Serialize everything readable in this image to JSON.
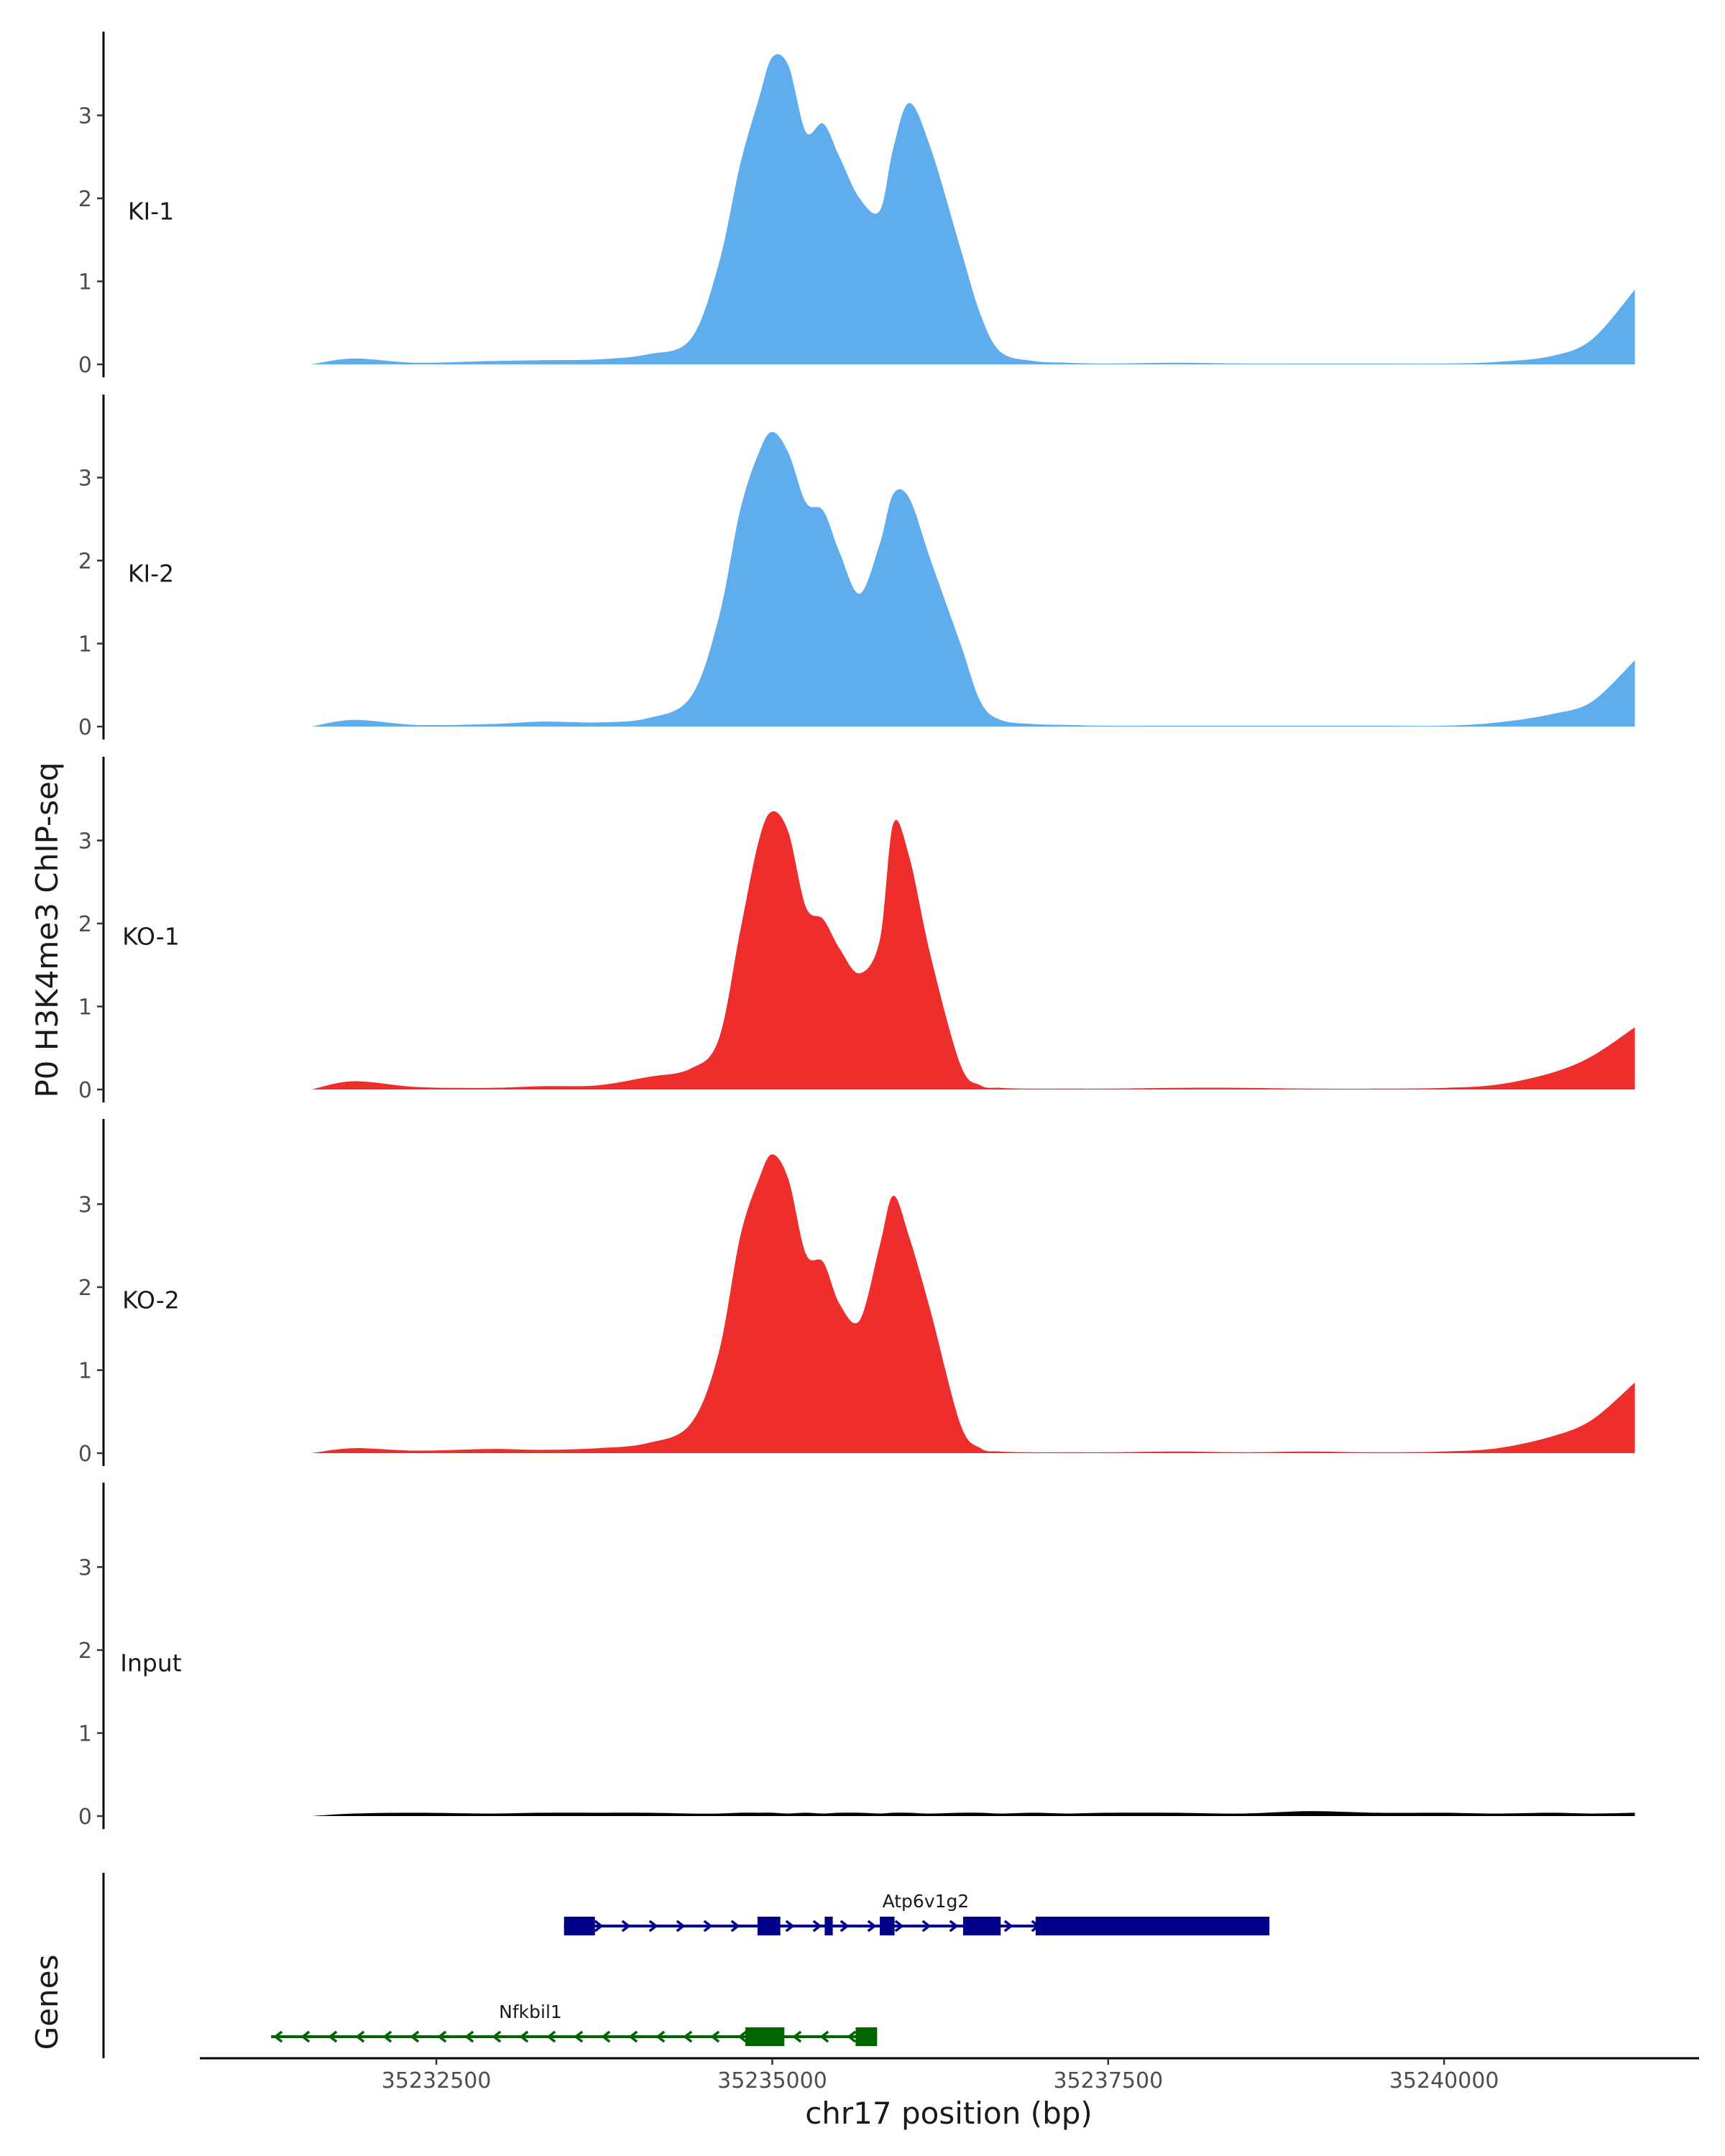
{
  "chart_data": {
    "type": "area",
    "title": "",
    "ylabel": "P0 H3K4me3 ChIP-seq",
    "xlabel": "chr17 position (bp)",
    "xlim": [
      35230750,
      35241850
    ],
    "ylim": [
      0,
      4
    ],
    "yticks": [
      0,
      1,
      2,
      3
    ],
    "xticks": [
      35232500,
      35235000,
      35237500,
      35240000
    ],
    "colors": {
      "KI": "#5FADEC",
      "KO": "#EE2D2D",
      "Input": "#000000",
      "plus_strand": "#00008B",
      "minus_strand": "#006400"
    },
    "x": [
      35231570,
      35231885,
      35232350,
      35232900,
      35233280,
      35233700,
      35234070,
      35234390,
      35234600,
      35234760,
      35234900,
      35235000,
      35235120,
      35235250,
      35235380,
      35235500,
      35235650,
      35235800,
      35235900,
      35236020,
      35236180,
      35236400,
      35236550,
      35236700,
      35236950,
      35237200,
      35237500,
      35238000,
      35238500,
      35239000,
      35239500,
      35240000,
      35240400,
      35240800,
      35241100,
      35241420
    ],
    "series": [
      {
        "name": "KI-1",
        "group": "KI",
        "values": [
          0,
          0.07,
          0.02,
          0.04,
          0.05,
          0.06,
          0.12,
          0.3,
          1.2,
          2.4,
          3.2,
          3.7,
          3.6,
          2.8,
          2.9,
          2.5,
          2.0,
          1.85,
          2.6,
          3.15,
          2.6,
          1.4,
          0.6,
          0.15,
          0.04,
          0.02,
          0.01,
          0.02,
          0.01,
          0.01,
          0.01,
          0.01,
          0.03,
          0.1,
          0.3,
          0.9
        ]
      },
      {
        "name": "KI-2",
        "group": "KI",
        "values": [
          0,
          0.08,
          0.02,
          0.03,
          0.06,
          0.05,
          0.1,
          0.35,
          1.3,
          2.6,
          3.3,
          3.55,
          3.3,
          2.7,
          2.6,
          2.1,
          1.6,
          2.2,
          2.8,
          2.75,
          2.0,
          1.0,
          0.3,
          0.08,
          0.03,
          0.02,
          0.01,
          0.01,
          0.01,
          0.01,
          0.01,
          0.01,
          0.05,
          0.15,
          0.3,
          0.8
        ]
      },
      {
        "name": "KO-1",
        "group": "KO",
        "values": [
          0,
          0.1,
          0.03,
          0.02,
          0.04,
          0.05,
          0.15,
          0.25,
          0.6,
          1.9,
          3.0,
          3.35,
          3.1,
          2.2,
          2.05,
          1.7,
          1.4,
          1.8,
          3.2,
          2.8,
          1.6,
          0.3,
          0.05,
          0.02,
          0.01,
          0.01,
          0.01,
          0.02,
          0.02,
          0.01,
          0.01,
          0.02,
          0.06,
          0.2,
          0.4,
          0.75
        ]
      },
      {
        "name": "KO-2",
        "group": "KO",
        "values": [
          0,
          0.06,
          0.03,
          0.05,
          0.04,
          0.06,
          0.12,
          0.35,
          1.2,
          2.6,
          3.3,
          3.6,
          3.3,
          2.4,
          2.3,
          1.8,
          1.6,
          2.5,
          3.1,
          2.6,
          1.7,
          0.35,
          0.06,
          0.02,
          0.01,
          0.01,
          0.01,
          0.02,
          0.01,
          0.02,
          0.01,
          0.02,
          0.06,
          0.2,
          0.4,
          0.85
        ]
      },
      {
        "name": "Input",
        "group": "Input",
        "values": [
          0,
          0.03,
          0.04,
          0.03,
          0.04,
          0.04,
          0.04,
          0.03,
          0.03,
          0.04,
          0.04,
          0.04,
          0.03,
          0.04,
          0.03,
          0.04,
          0.04,
          0.03,
          0.04,
          0.04,
          0.03,
          0.04,
          0.04,
          0.03,
          0.04,
          0.03,
          0.04,
          0.04,
          0.03,
          0.06,
          0.04,
          0.04,
          0.03,
          0.04,
          0.03,
          0.04
        ]
      }
    ],
    "genes_track_label": "Genes",
    "genes": [
      {
        "name": "Atp6v1g2",
        "strand": "+",
        "start": 35233450,
        "end": 35238700,
        "exons": [
          [
            35233450,
            35233680
          ],
          [
            35234890,
            35235060
          ],
          [
            35235390,
            35235450
          ],
          [
            35235800,
            35235910
          ],
          [
            35236420,
            35236700
          ],
          [
            35236960,
            35238700
          ]
        ]
      },
      {
        "name": "Nfkbil1",
        "strand": "-",
        "start": 35231270,
        "end": 35235780,
        "exons": [
          [
            35234800,
            35235090
          ],
          [
            35235620,
            35235780
          ]
        ]
      }
    ]
  }
}
